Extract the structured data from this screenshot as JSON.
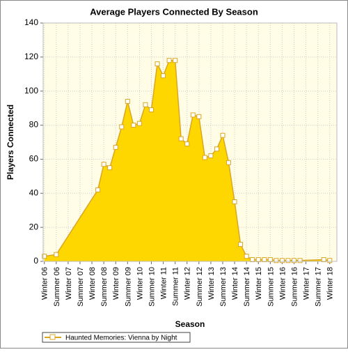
{
  "chart_data": {
    "type": "area",
    "title": "Average Players Connected By Season",
    "x_label": "Season",
    "y_label": "Players Connected",
    "ylim": [
      0,
      140
    ],
    "yticks": [
      0,
      20,
      40,
      60,
      80,
      100,
      120,
      140
    ],
    "xlim": [
      -0.2,
      49.2
    ],
    "xticks": [
      {
        "value": 0,
        "label": "Winter 06"
      },
      {
        "value": 2,
        "label": "Summer 06"
      },
      {
        "value": 4,
        "label": "Winter 07"
      },
      {
        "value": 6,
        "label": "Summer 07"
      },
      {
        "value": 8,
        "label": "Winter 08"
      },
      {
        "value": 10,
        "label": "Summer 08"
      },
      {
        "value": 12,
        "label": "Winter 09"
      },
      {
        "value": 14,
        "label": "Summer 09"
      },
      {
        "value": 16,
        "label": "Winter 10"
      },
      {
        "value": 18,
        "label": "Summer 10"
      },
      {
        "value": 20,
        "label": "Winter 11"
      },
      {
        "value": 22,
        "label": "Summer 11"
      },
      {
        "value": 24,
        "label": "Winter 12"
      },
      {
        "value": 26,
        "label": "Summer 12"
      },
      {
        "value": 28,
        "label": "Winter 13"
      },
      {
        "value": 30,
        "label": "Summer 13"
      },
      {
        "value": 32,
        "label": "Winter 14"
      },
      {
        "value": 34,
        "label": "Summer 14"
      },
      {
        "value": 36,
        "label": "Winter 15"
      },
      {
        "value": 38,
        "label": "Summer 15"
      },
      {
        "value": 40,
        "label": "Winter 16"
      },
      {
        "value": 42,
        "label": "Summer 16"
      },
      {
        "value": 44,
        "label": "Winter 17"
      },
      {
        "value": 46,
        "label": "Summer 17"
      },
      {
        "value": 48,
        "label": "Winter 18"
      }
    ],
    "grid": true,
    "series": [
      {
        "name": "Haunted Memories: Vienna by Night",
        "color": "#ffd700",
        "line_color": "#daa520",
        "x": [
          0,
          2,
          9,
          10,
          11,
          12,
          13,
          14,
          15,
          16,
          17,
          18,
          19,
          20,
          21,
          22,
          23,
          24,
          25,
          26,
          27,
          28,
          29,
          30,
          31,
          32,
          33,
          34,
          35,
          36,
          37,
          38,
          39,
          40,
          41,
          42,
          43,
          47,
          48
        ],
        "values": [
          3,
          4,
          42,
          57,
          55,
          67,
          79,
          94,
          80,
          81,
          92,
          89,
          116,
          109,
          118,
          118,
          72,
          69,
          86,
          85,
          61,
          62,
          66,
          74,
          58,
          35,
          10,
          3,
          1,
          1,
          1,
          1,
          0.5,
          0.5,
          0.5,
          0.5,
          0.5,
          1,
          0.5
        ]
      }
    ]
  }
}
